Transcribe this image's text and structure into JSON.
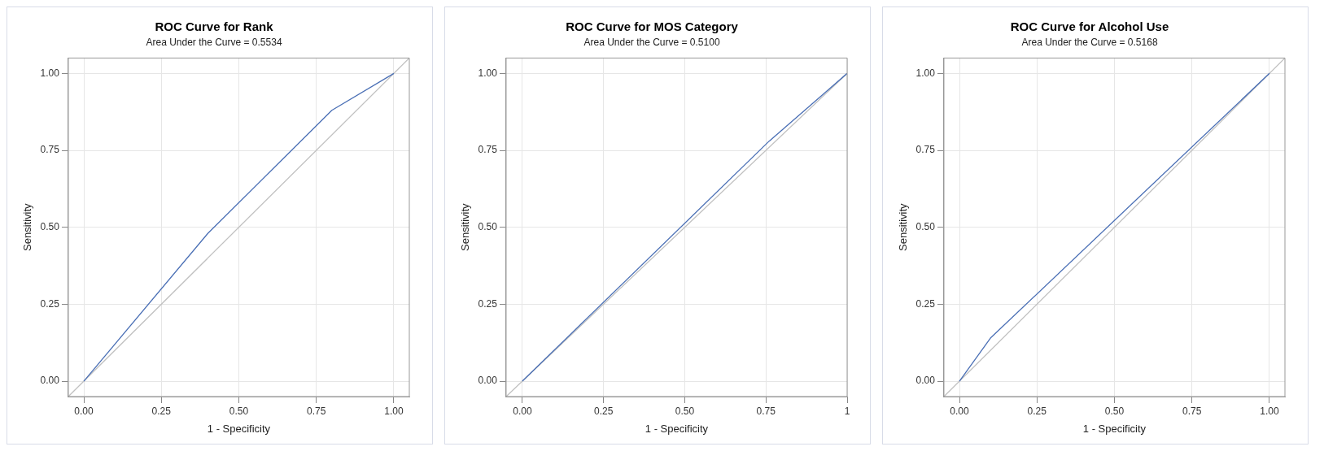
{
  "chart_data": [
    {
      "type": "line",
      "title": "ROC Curve for Rank",
      "subtitle": "Area Under the Curve = 0.5534",
      "xlabel": "1 - Specificity",
      "ylabel": "Sensitivity",
      "xlim": [
        -0.05,
        1.05
      ],
      "ylim": [
        -0.05,
        1.05
      ],
      "xticks": [
        {
          "value": 0,
          "label": "0.00"
        },
        {
          "value": 0.25,
          "label": "0.25"
        },
        {
          "value": 0.5,
          "label": "0.50"
        },
        {
          "value": 0.75,
          "label": "0.75"
        },
        {
          "value": 1,
          "label": "1.00"
        }
      ],
      "yticks": [
        {
          "value": 0,
          "label": "0.00"
        },
        {
          "value": 0.25,
          "label": "0.25"
        },
        {
          "value": 0.5,
          "label": "0.50"
        },
        {
          "value": 0.75,
          "label": "0.75"
        },
        {
          "value": 1,
          "label": "1.00"
        }
      ],
      "grid": true,
      "legend": false,
      "marker": "none",
      "series": [
        {
          "color": "#4a6fb5",
          "x": [
            0,
            0.4,
            0.8,
            1
          ],
          "values": [
            0,
            0.48,
            0.88,
            1
          ]
        },
        {
          "color": "#c0c0c0",
          "x": [
            -0.05,
            1.05
          ],
          "values": [
            -0.05,
            1.05
          ]
        }
      ]
    },
    {
      "type": "line",
      "title": "ROC Curve for MOS Category",
      "subtitle": "Area Under the Curve = 0.5100",
      "xlabel": "1 - Specificity",
      "ylabel": "Sensitivity",
      "xlim": [
        -0.05,
        1
      ],
      "ylim": [
        -0.05,
        1.05
      ],
      "xticks": [
        {
          "value": 0,
          "label": "0.00"
        },
        {
          "value": 0.25,
          "label": "0.25"
        },
        {
          "value": 0.5,
          "label": "0.50"
        },
        {
          "value": 0.75,
          "label": "0.75"
        },
        1
      ],
      "yticks": [
        {
          "value": 0,
          "label": "0.00"
        },
        {
          "value": 0.25,
          "label": "0.25"
        },
        {
          "value": 0.5,
          "label": "0.50"
        },
        {
          "value": 0.75,
          "label": "0.75"
        },
        {
          "value": 1,
          "label": "1.00"
        }
      ],
      "grid": true,
      "legend": false,
      "marker": "none",
      "series": [
        {
          "color": "#4a6fb5",
          "x": [
            0,
            0.76,
            1
          ],
          "values": [
            0,
            0.78,
            1
          ]
        },
        {
          "color": "#c0c0c0",
          "x": [
            -0.05,
            1
          ],
          "values": [
            -0.05,
            1
          ]
        }
      ]
    },
    {
      "type": "line",
      "title": "ROC Curve for Alcohol Use",
      "subtitle": "Area Under the Curve = 0.5168",
      "xlabel": "1 - Specificity",
      "ylabel": "Sensitivity",
      "xlim": [
        -0.05,
        1.05
      ],
      "ylim": [
        -0.05,
        1.05
      ],
      "xticks": [
        {
          "value": 0,
          "label": "0.00"
        },
        {
          "value": 0.25,
          "label": "0.25"
        },
        {
          "value": 0.5,
          "label": "0.50"
        },
        {
          "value": 0.75,
          "label": "0.75"
        },
        {
          "value": 1,
          "label": "1.00"
        }
      ],
      "yticks": [
        {
          "value": 0,
          "label": "0.00"
        },
        {
          "value": 0.25,
          "label": "0.25"
        },
        {
          "value": 0.5,
          "label": "0.50"
        },
        {
          "value": 0.75,
          "label": "0.75"
        },
        {
          "value": 1,
          "label": "1.00"
        }
      ],
      "grid": true,
      "legend": false,
      "marker": "none",
      "series": [
        {
          "color": "#4a6fb5",
          "x": [
            0,
            0.1,
            1
          ],
          "values": [
            0,
            0.14,
            1
          ]
        },
        {
          "color": "#c0c0c0",
          "x": [
            -0.05,
            1.05
          ],
          "values": [
            -0.05,
            1.05
          ]
        }
      ]
    }
  ]
}
